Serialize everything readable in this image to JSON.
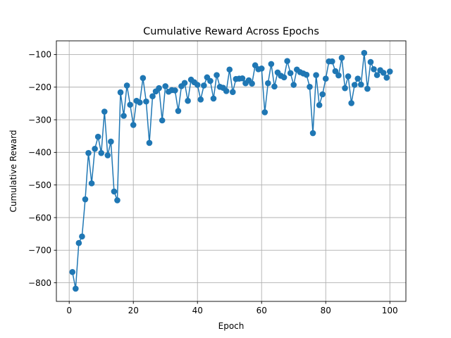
{
  "chart_data": {
    "type": "line",
    "title": "Cumulative Reward Across Epochs",
    "xlabel": "Epoch",
    "ylabel": "Cumulative Reward",
    "xlim": [
      -4,
      105
    ],
    "ylim": [
      -857,
      -58
    ],
    "xticks": [
      0,
      20,
      40,
      60,
      80,
      100
    ],
    "yticks": [
      -800,
      -700,
      -600,
      -500,
      -400,
      -300,
      -200,
      -100
    ],
    "grid": true,
    "marker": "circle",
    "color": "#1f77b4",
    "series": [
      {
        "x": [
          1,
          2,
          3,
          4,
          5,
          6,
          7,
          8,
          9,
          10,
          11,
          12,
          13,
          14,
          15,
          16,
          17,
          18,
          19,
          20,
          21,
          22,
          23,
          24,
          25,
          26,
          27,
          28,
          29,
          30,
          31,
          32,
          33,
          34,
          35,
          36,
          37,
          38,
          39,
          40,
          41,
          42,
          43,
          44,
          45,
          46,
          47,
          48,
          49,
          50,
          51,
          52,
          53,
          54,
          55,
          56,
          57,
          58,
          59,
          60,
          61,
          62,
          63,
          64,
          65,
          66,
          67,
          68,
          69,
          70,
          71,
          72,
          73,
          74,
          75,
          76,
          77,
          78,
          79,
          80,
          81,
          82,
          83,
          84,
          85,
          86,
          87,
          88,
          89,
          90,
          91,
          92,
          93,
          94,
          95,
          96,
          97,
          98,
          99,
          100
        ],
        "values": [
          -767,
          -818,
          -678,
          -658,
          -544,
          -402,
          -495,
          -389,
          -352,
          -402,
          -275,
          -409,
          -367,
          -520,
          -547,
          -216,
          -288,
          -195,
          -254,
          -316,
          -242,
          -247,
          -172,
          -244,
          -371,
          -228,
          -213,
          -203,
          -302,
          -197,
          -214,
          -209,
          -210,
          -273,
          -197,
          -187,
          -242,
          -177,
          -185,
          -193,
          -238,
          -195,
          -170,
          -181,
          -235,
          -163,
          -199,
          -202,
          -212,
          -146,
          -215,
          -175,
          -174,
          -173,
          -188,
          -179,
          -189,
          -133,
          -145,
          -143,
          -277,
          -188,
          -129,
          -198,
          -155,
          -165,
          -170,
          -120,
          -157,
          -193,
          -146,
          -154,
          -158,
          -162,
          -199,
          -341,
          -163,
          -255,
          -222,
          -174,
          -121,
          -121,
          -151,
          -164,
          -110,
          -203,
          -167,
          -249,
          -193,
          -174,
          -192,
          -95,
          -205,
          -123,
          -145,
          -163,
          -148,
          -156,
          -171,
          -152
        ]
      }
    ]
  }
}
